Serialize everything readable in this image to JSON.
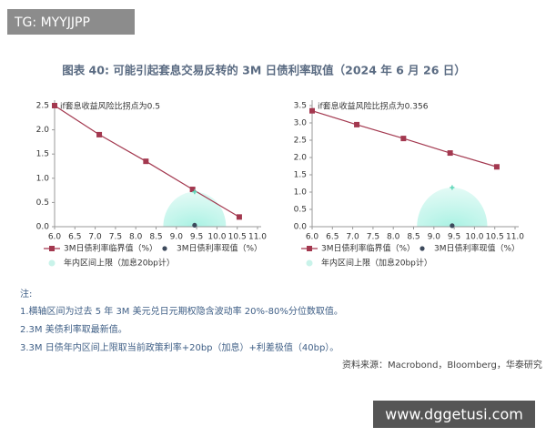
{
  "watermark": "TG: MYYJJPP",
  "title": "图表 40: 可能引起套息交易反转的 3M 日债利率取值（2024 年 6 月 26 日）",
  "chart_data": [
    {
      "type": "line",
      "annotation": "if套息收益风险比拐点为0.5",
      "xlim": [
        6.0,
        11.0
      ],
      "xticks": [
        {
          "value": 6.0,
          "label": "6.0"
        },
        6.5,
        {
          "value": 7.0,
          "label": "7.0"
        },
        7.5,
        {
          "value": 8.0,
          "label": "8.0"
        },
        8.5,
        {
          "value": 9.0,
          "label": "9.0"
        },
        9.5,
        {
          "value": 10.0,
          "label": "10.0"
        },
        10.5,
        {
          "value": 11.0,
          "label": "11.0"
        }
      ],
      "ylim": [
        0.0,
        2.5
      ],
      "yticks": [
        {
          "value": 0.0,
          "label": "0.0"
        },
        0.5,
        {
          "value": 1.0,
          "label": "1.0"
        },
        1.5,
        {
          "value": 2.0,
          "label": "2.0"
        },
        2.5
      ],
      "series": [
        {
          "name": "3M日债利率临界值（%）",
          "kind": "line",
          "color": "#a3384f",
          "x": [
            6.0,
            7.1,
            8.25,
            9.4,
            10.55
          ],
          "values": [
            2.5,
            1.9,
            1.35,
            0.77,
            0.2
          ]
        },
        {
          "name": "3M日债利率现值（%）",
          "kind": "scatter",
          "color": "#3d4a5c",
          "x": [
            9.45
          ],
          "values": [
            0.03
          ]
        },
        {
          "name": "年内区间上限（加息20bp计）",
          "kind": "halo",
          "color": "#5fd6b8",
          "x": [
            9.45
          ],
          "values": [
            0.72
          ]
        }
      ]
    },
    {
      "type": "line",
      "annotation": "if套息收益风险比拐点为0.356",
      "xlim": [
        6.0,
        11.0
      ],
      "xticks": [
        {
          "value": 6.0,
          "label": "6.0"
        },
        6.5,
        {
          "value": 7.0,
          "label": "7.0"
        },
        7.5,
        {
          "value": 8.0,
          "label": "8.0"
        },
        8.5,
        {
          "value": 9.0,
          "label": "9.0"
        },
        9.5,
        {
          "value": 10.0,
          "label": "10.0"
        },
        10.5,
        {
          "value": 11.0,
          "label": "11.0"
        }
      ],
      "ylim": [
        0.0,
        3.5
      ],
      "yticks": [
        {
          "value": 0.0,
          "label": "0.0"
        },
        0.5,
        {
          "value": 1.0,
          "label": "1.0"
        },
        1.5,
        {
          "value": 2.0,
          "label": "2.0"
        },
        2.5,
        {
          "value": 3.0,
          "label": "3.0"
        },
        3.5
      ],
      "series": [
        {
          "name": "3M日债利率临界值（%）",
          "kind": "line",
          "color": "#a3384f",
          "x": [
            6.0,
            7.1,
            8.25,
            9.4,
            10.55
          ],
          "values": [
            3.35,
            2.95,
            2.55,
            2.13,
            1.73
          ]
        },
        {
          "name": "3M日债利率现值（%）",
          "kind": "scatter",
          "color": "#3d4a5c",
          "x": [
            9.45
          ],
          "values": [
            0.03
          ]
        },
        {
          "name": "年内区间上限（加息20bp计）",
          "kind": "halo",
          "color": "#5fd6b8",
          "x": [
            9.45
          ],
          "values": [
            1.13
          ]
        }
      ]
    }
  ],
  "notes": {
    "heading": "注:",
    "items": [
      "1.横轴区间为过去 5 年 3M 美元兑日元期权隐含波动率 20%-80%分位数取值。",
      "2.3M 美债利率取最新值。",
      "3.3M 日债年内区间上限取当前政策利率+20bp（加息）+利差极值（40bp）。"
    ]
  },
  "source": "资料来源：Macrobond，Bloomberg，华泰研究",
  "footer_watermark": "www.dggetusi.com"
}
